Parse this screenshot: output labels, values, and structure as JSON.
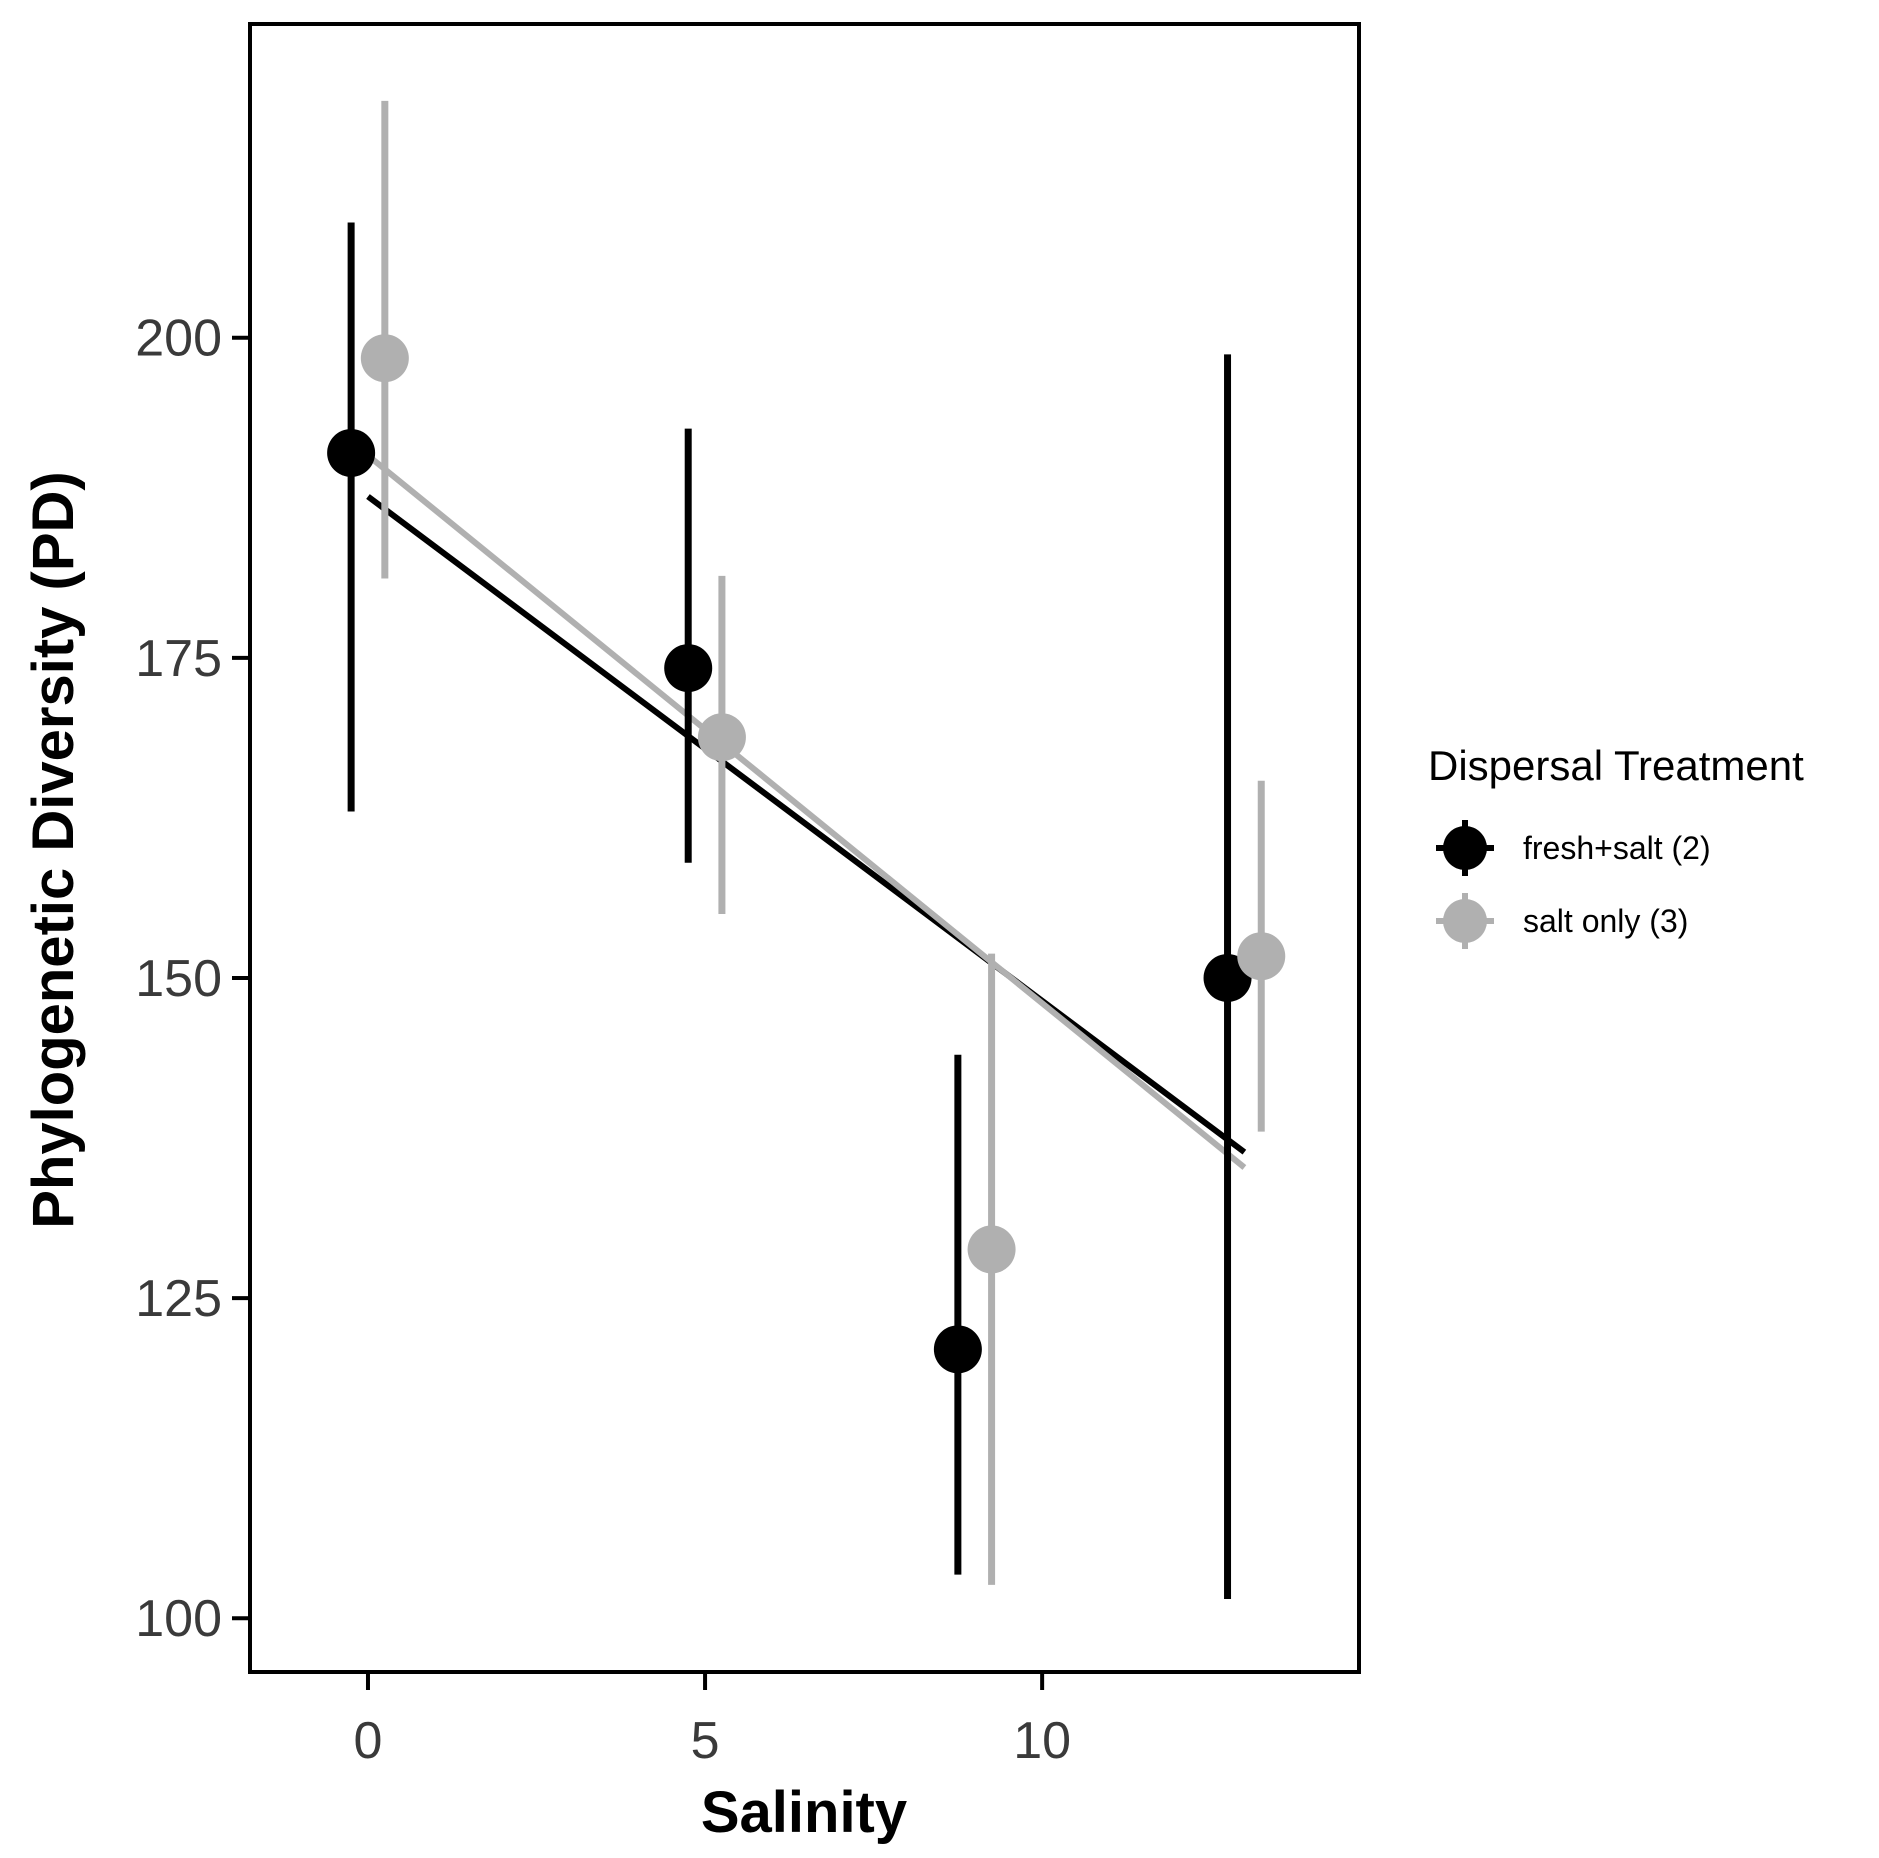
{
  "chart_data": {
    "type": "scatter",
    "xlabel": "Salinity",
    "ylabel": "Phylogenetic Diversity (PD)",
    "xlim": [
      -1.75,
      14.7
    ],
    "ylim": [
      95.8,
      224.5
    ],
    "xticks": [
      0,
      5,
      10
    ],
    "yticks": [
      100,
      125,
      150,
      175,
      200
    ],
    "grid": false,
    "legend": {
      "title": "Dispersal Treatment",
      "position": "right"
    },
    "series": [
      {
        "name": "fresh+salt (2)",
        "color": "#000000",
        "points": [
          {
            "x": 0,
            "y": 191.0,
            "low": 163.0,
            "high": 209.0
          },
          {
            "x": 5,
            "y": 174.2,
            "low": 159.0,
            "high": 192.9
          },
          {
            "x": 9,
            "y": 121.0,
            "low": 103.4,
            "high": 144.0
          },
          {
            "x": 13,
            "y": 150.0,
            "low": 101.5,
            "high": 198.7
          }
        ],
        "fit": {
          "x": [
            0,
            13
          ],
          "y": [
            187.6,
            136.4
          ]
        }
      },
      {
        "name": "salt only (3)",
        "color": "#b0b0b0",
        "points": [
          {
            "x": 0,
            "y": 198.4,
            "low": 181.2,
            "high": 218.5
          },
          {
            "x": 5,
            "y": 168.8,
            "low": 155.0,
            "high": 181.4
          },
          {
            "x": 9,
            "y": 128.8,
            "low": 102.6,
            "high": 151.9
          },
          {
            "x": 13,
            "y": 151.7,
            "low": 138.0,
            "high": 165.4
          }
        ],
        "fit": {
          "x": [
            0,
            13
          ],
          "y": [
            190.8,
            135.2
          ]
        }
      }
    ],
    "dodge": 0.5
  }
}
